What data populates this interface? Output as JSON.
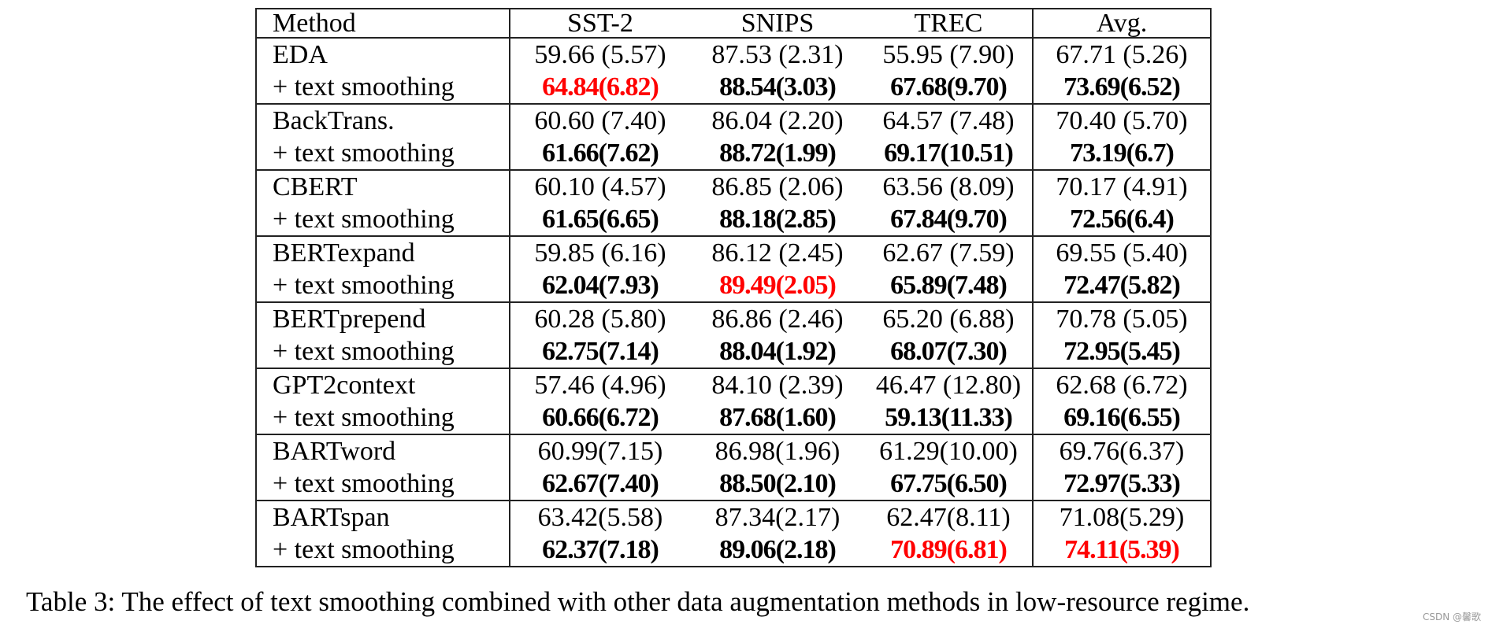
{
  "table": {
    "headers": [
      "Method",
      "SST-2",
      "SNIPS",
      "TREC",
      "Avg."
    ],
    "rows": [
      {
        "method": "EDA",
        "cells": [
          "59.66 (5.57)",
          "87.53 (2.31)",
          "55.95 (7.90)",
          "67.71 (5.26)"
        ],
        "bold": false,
        "red": [
          false,
          false,
          false,
          false
        ]
      },
      {
        "method": "+ text smoothing",
        "cells": [
          "64.84(6.82)",
          "88.54(3.03)",
          "67.68(9.70)",
          "73.69(6.52)"
        ],
        "bold": true,
        "red": [
          true,
          false,
          false,
          false
        ]
      },
      {
        "method": "BackTrans.",
        "cells": [
          "60.60 (7.40)",
          "86.04 (2.20)",
          "64.57 (7.48)",
          "70.40 (5.70)"
        ],
        "bold": false,
        "red": [
          false,
          false,
          false,
          false
        ]
      },
      {
        "method": "+ text smoothing",
        "cells": [
          "61.66(7.62)",
          "88.72(1.99)",
          "69.17(10.51)",
          "73.19(6.7)"
        ],
        "bold": true,
        "red": [
          false,
          false,
          false,
          false
        ]
      },
      {
        "method": "CBERT",
        "cells": [
          "60.10 (4.57)",
          "86.85 (2.06)",
          "63.56 (8.09)",
          "70.17 (4.91)"
        ],
        "bold": false,
        "red": [
          false,
          false,
          false,
          false
        ]
      },
      {
        "method": "+ text smoothing",
        "cells": [
          "61.65(6.65)",
          "88.18(2.85)",
          "67.84(9.70)",
          "72.56(6.4)"
        ],
        "bold": true,
        "red": [
          false,
          false,
          false,
          false
        ]
      },
      {
        "method": "BERTexpand",
        "cells": [
          "59.85 (6.16)",
          "86.12 (2.45)",
          "62.67 (7.59)",
          "69.55 (5.40)"
        ],
        "bold": false,
        "red": [
          false,
          false,
          false,
          false
        ]
      },
      {
        "method": "+ text smoothing",
        "cells": [
          "62.04(7.93)",
          "89.49(2.05)",
          "65.89(7.48)",
          "72.47(5.82)"
        ],
        "bold": true,
        "red": [
          false,
          true,
          false,
          false
        ]
      },
      {
        "method": "BERTprepend",
        "cells": [
          "60.28 (5.80)",
          "86.86 (2.46)",
          "65.20 (6.88)",
          "70.78 (5.05)"
        ],
        "bold": false,
        "red": [
          false,
          false,
          false,
          false
        ]
      },
      {
        "method": "+ text smoothing",
        "cells": [
          "62.75(7.14)",
          "88.04(1.92)",
          "68.07(7.30)",
          "72.95(5.45)"
        ],
        "bold": true,
        "red": [
          false,
          false,
          false,
          false
        ]
      },
      {
        "method": "GPT2context",
        "cells": [
          "57.46 (4.96)",
          "84.10 (2.39)",
          "46.47 (12.80)",
          "62.68 (6.72)"
        ],
        "bold": false,
        "red": [
          false,
          false,
          false,
          false
        ]
      },
      {
        "method": "+ text smoothing",
        "cells": [
          "60.66(6.72)",
          "87.68(1.60)",
          "59.13(11.33)",
          "69.16(6.55)"
        ],
        "bold": true,
        "red": [
          false,
          false,
          false,
          false
        ]
      },
      {
        "method": "BARTword",
        "cells": [
          "60.99(7.15)",
          "86.98(1.96)",
          "61.29(10.00)",
          "69.76(6.37)"
        ],
        "bold": false,
        "red": [
          false,
          false,
          false,
          false
        ]
      },
      {
        "method": "+ text smoothing",
        "cells": [
          "62.67(7.40)",
          "88.50(2.10)",
          "67.75(6.50)",
          "72.97(5.33)"
        ],
        "bold": true,
        "red": [
          false,
          false,
          false,
          false
        ]
      },
      {
        "method": "BARTspan",
        "cells": [
          "63.42(5.58)",
          "87.34(2.17)",
          "62.47(8.11)",
          "71.08(5.29)"
        ],
        "bold": false,
        "red": [
          false,
          false,
          false,
          false
        ]
      },
      {
        "method": "+ text smoothing",
        "cells": [
          "62.37(7.18)",
          "89.06(2.18)",
          "70.89(6.81)",
          "74.11(5.39)"
        ],
        "bold": true,
        "red": [
          false,
          false,
          true,
          true
        ]
      }
    ]
  },
  "caption": "Table 3: The effect of text smoothing combined with other data augmentation methods in low-resource regime.",
  "watermark": "CSDN @馨歌",
  "colors": {
    "best": "#ff0000",
    "text": "#000000"
  }
}
